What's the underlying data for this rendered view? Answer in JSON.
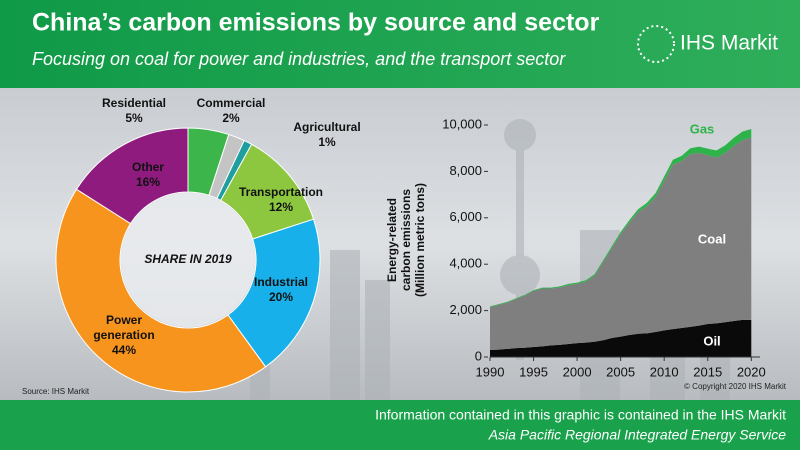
{
  "header": {
    "title": "China’s carbon emissions by source and sector",
    "subtitle": "Focusing on coal for power and industries, and the transport sector",
    "logo": "IHS Markit"
  },
  "chart_data": [
    {
      "type": "donut",
      "center_label": "SHARE IN 2019",
      "categories": [
        "Residential",
        "Commercial",
        "Agricultural",
        "Transportation",
        "Industrial",
        "Power generation",
        "Other"
      ],
      "values": [
        5,
        2,
        1,
        12,
        20,
        44,
        16
      ],
      "value_labels": [
        "5%",
        "2%",
        "1%",
        "12%",
        "20%",
        "44%",
        "16%"
      ],
      "colors": [
        "#3cb54a",
        "#c4c4c4",
        "#1f9ea0",
        "#8dc63f",
        "#17b0ea",
        "#f7941d",
        "#8e1b7d"
      ],
      "source": "Source: IHS Markit"
    },
    {
      "type": "stacked-area",
      "ylabel": [
        "Energy-related",
        "carbon emissions",
        "(Million metric tons)"
      ],
      "x": [
        1990,
        1991,
        1992,
        1993,
        1994,
        1995,
        1996,
        1997,
        1998,
        1999,
        2000,
        2001,
        2002,
        2003,
        2004,
        2005,
        2006,
        2007,
        2008,
        2009,
        2010,
        2011,
        2012,
        2013,
        2014,
        2015,
        2016,
        2017,
        2018,
        2019,
        2020
      ],
      "series": [
        {
          "name": "Oil",
          "color": "#0a0a0a",
          "values": [
            300,
            320,
            350,
            380,
            400,
            430,
            460,
            500,
            520,
            560,
            600,
            620,
            660,
            720,
            820,
            880,
            950,
            1000,
            1020,
            1080,
            1150,
            1200,
            1250,
            1300,
            1350,
            1420,
            1450,
            1500,
            1550,
            1600,
            1600
          ]
        },
        {
          "name": "Coal",
          "color": "#7f7f7f",
          "values": [
            1850,
            1930,
            2000,
            2120,
            2250,
            2420,
            2490,
            2450,
            2480,
            2540,
            2550,
            2630,
            2840,
            3380,
            3880,
            4420,
            4850,
            5250,
            5480,
            5820,
            6450,
            7100,
            7200,
            7450,
            7450,
            7280,
            7150,
            7300,
            7550,
            7750,
            7850
          ]
        },
        {
          "name": "Gas",
          "color": "#2db34a",
          "values": [
            30,
            30,
            30,
            30,
            35,
            35,
            40,
            40,
            45,
            50,
            55,
            60,
            65,
            70,
            80,
            90,
            100,
            120,
            140,
            160,
            180,
            200,
            220,
            250,
            270,
            280,
            300,
            320,
            350,
            370,
            380
          ]
        }
      ],
      "xlim": [
        1990,
        2021
      ],
      "xticks": [
        1990,
        1995,
        2000,
        2005,
        2010,
        2015,
        2020
      ],
      "ylim": [
        0,
        10000
      ],
      "yticks": [
        0,
        {
          "value": 2000,
          "label": "2,000"
        },
        {
          "value": 4000,
          "label": "4,000"
        },
        {
          "value": 6000,
          "label": "6,000"
        },
        {
          "value": 8000,
          "label": "8,000"
        },
        {
          "value": 10000,
          "label": "10,000"
        }
      ],
      "copyright": "© Copyright 2020 IHS Markit"
    }
  ],
  "footer": {
    "line1": "Information contained in this graphic is contained in the IHS Markit",
    "line2": "Asia Pacific Regional Integrated Energy Service"
  }
}
